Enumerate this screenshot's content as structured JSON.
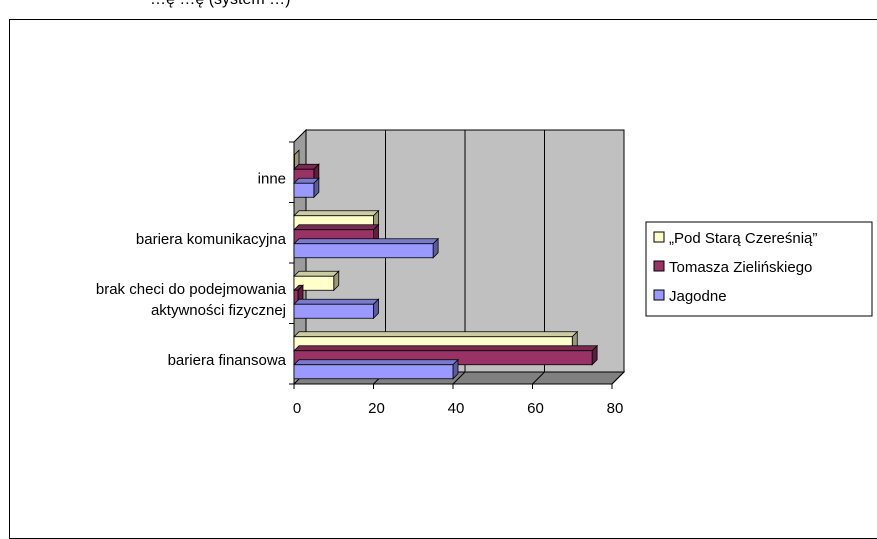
{
  "page": {
    "top_caption": "…ę …ę (system …)"
  },
  "chart_data": {
    "type": "bar",
    "orientation": "horizontal",
    "style": "3d",
    "categories": [
      "bariera finansowa",
      "brak checi do podejmowania aktywności fizycznej",
      "bariera komunikacyjna",
      "inne"
    ],
    "category_label_lines": [
      [
        "bariera finansowa"
      ],
      [
        "brak checi do podejmowania",
        "aktywności fizycznej"
      ],
      [
        "bariera komunikacyjna"
      ],
      [
        "inne"
      ]
    ],
    "series": [
      {
        "name": "„Pod Starą Czereśnią”",
        "color": "#FFFFCC",
        "values": [
          70,
          10,
          20,
          0
        ]
      },
      {
        "name": "Tomasza Zielińskiego",
        "color": "#993366",
        "values": [
          75,
          1,
          20,
          5
        ]
      },
      {
        "name": "Jagodne",
        "color": "#9999FF",
        "values": [
          40,
          20,
          35,
          5
        ]
      }
    ],
    "xlim": [
      0,
      80
    ],
    "x_ticks": [
      0,
      20,
      40,
      60,
      80
    ],
    "gridlines": true,
    "legend_position": "right",
    "wall_color": "#C0C0C0"
  }
}
